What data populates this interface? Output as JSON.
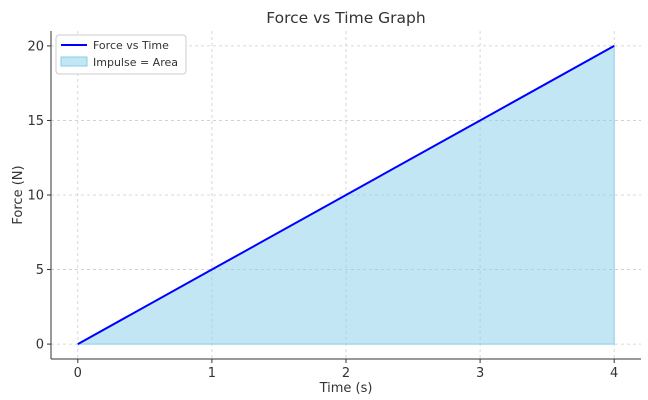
{
  "chart_data": {
    "type": "area",
    "title": "Force vs Time Graph",
    "xlabel": "Time (s)",
    "ylabel": "Force (N)",
    "x": [
      0,
      1,
      2,
      3,
      4
    ],
    "xticks": [
      "0",
      "1",
      "2",
      "3",
      "4"
    ],
    "yticks": [
      "0",
      "5",
      "10",
      "15",
      "20"
    ],
    "xlim": [
      -0.2,
      4.2
    ],
    "ylim": [
      -1,
      21
    ],
    "grid": true,
    "legend_position": "upper-left",
    "series": [
      {
        "name": "Force vs Time",
        "kind": "line",
        "values": [
          0,
          5,
          10,
          15,
          20
        ],
        "color": "#0000ff"
      },
      {
        "name": "Impulse = Area",
        "kind": "area",
        "values": [
          0,
          5,
          10,
          15,
          20
        ],
        "color": "#87ceeb"
      }
    ]
  }
}
